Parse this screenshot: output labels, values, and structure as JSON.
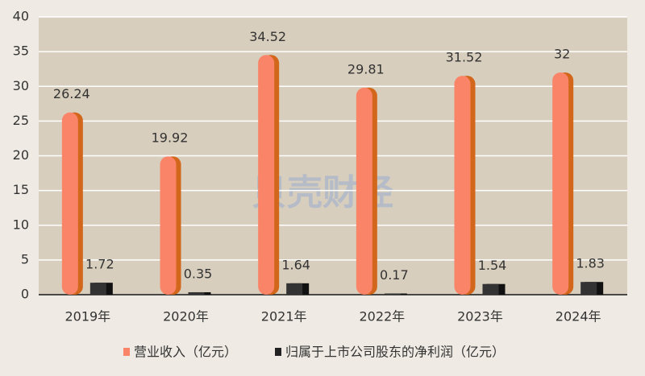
{
  "chart_data": {
    "type": "bar",
    "watermark": "贝壳财经",
    "categories": [
      "2019年",
      "2020年",
      "2021年",
      "2022年",
      "2023年",
      "2024年"
    ],
    "series": [
      {
        "name": "营业收入（亿元）",
        "color": "#f98467",
        "values": [
          26.24,
          19.92,
          34.52,
          29.81,
          31.52,
          32
        ]
      },
      {
        "name": "归属于上市公司股东的净利润（亿元）",
        "color": "#333333",
        "values": [
          1.72,
          0.35,
          1.64,
          0.17,
          1.54,
          1.83
        ]
      }
    ],
    "ylim": [
      0,
      40
    ],
    "yticks": [
      0,
      5,
      10,
      15,
      20,
      25,
      30,
      35,
      40
    ],
    "grid": true,
    "legend": "bottom"
  }
}
